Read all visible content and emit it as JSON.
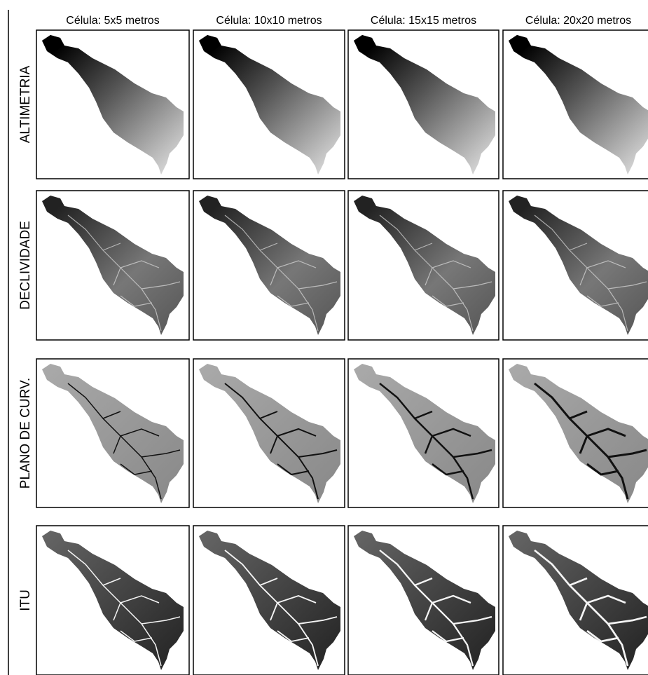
{
  "columns": [
    "Célula: 5x5 metros",
    "Célula: 10x10 metros",
    "Célula: 15x15 metros",
    "Célula: 20x20 metros"
  ],
  "rows": [
    "ALTIMETRIA",
    "DECLIVIDADE",
    "PLANO DE CURV.",
    "ITU"
  ]
}
